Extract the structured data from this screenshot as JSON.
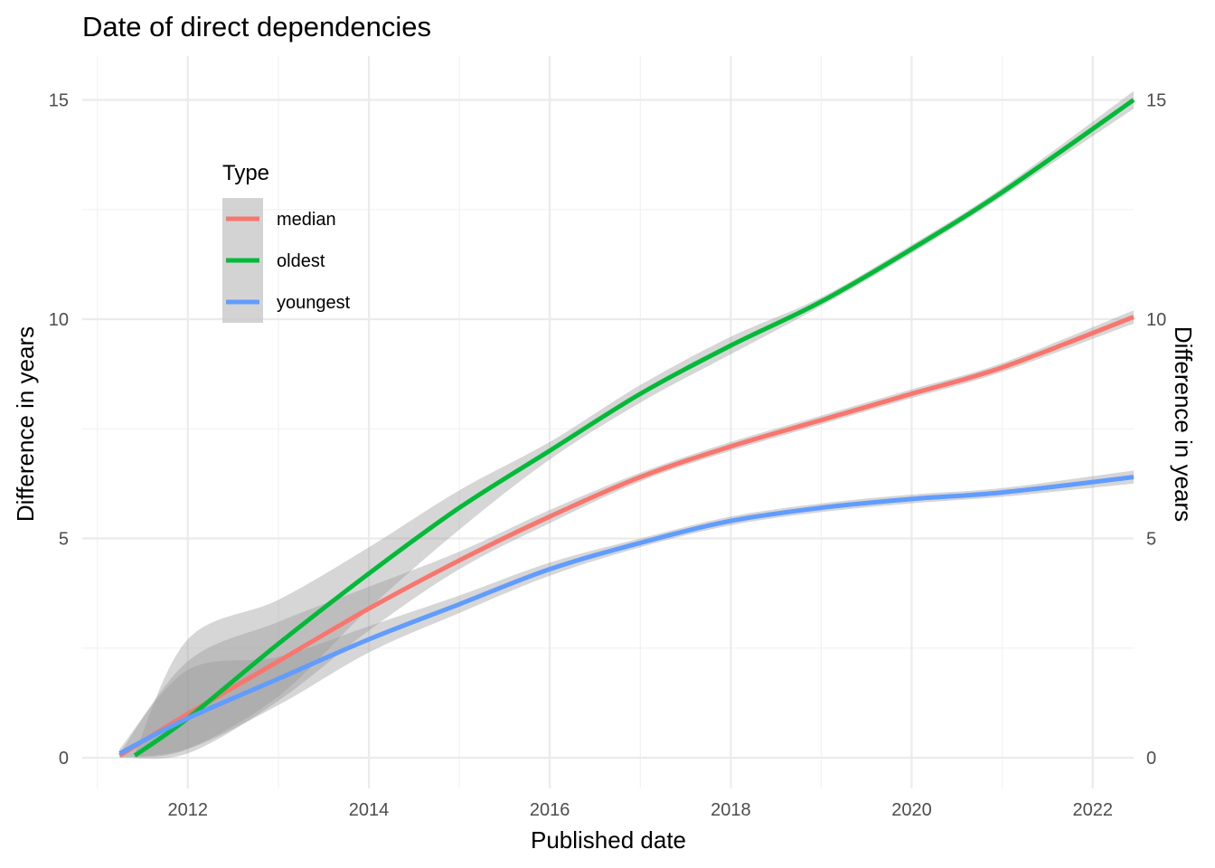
{
  "chart_data": {
    "type": "line",
    "title": "Date of direct dependencies",
    "xlabel": "Published date",
    "ylabel": "Difference in years",
    "ylabel_right": "Difference in years",
    "x_ticks": [
      "2012",
      "2014",
      "2016",
      "2018",
      "2020",
      "2022"
    ],
    "y_ticks": [
      "0",
      "5",
      "10",
      "15"
    ],
    "xlim": [
      "2010-11-01",
      "2022-06-15"
    ],
    "ylim": [
      -0.7,
      16.0
    ],
    "grid": true,
    "secondary_y_axis": true,
    "legend": {
      "title": "Type",
      "placement": "top-left inside plot"
    },
    "series": [
      {
        "name": "median",
        "color": "#F8766D",
        "x": [
          "2011-04-01",
          "2012-01-01",
          "2013-01-01",
          "2014-01-01",
          "2015-01-01",
          "2016-01-01",
          "2017-01-01",
          "2018-01-01",
          "2019-01-01",
          "2020-01-01",
          "2021-01-01",
          "2022-06-15"
        ],
        "values": [
          0.05,
          1.0,
          2.2,
          3.4,
          4.5,
          5.5,
          6.4,
          7.1,
          7.7,
          8.3,
          8.9,
          10.05
        ],
        "ci_low": [
          0.0,
          0.1,
          1.3,
          2.9,
          4.3,
          5.35,
          6.3,
          7.0,
          7.6,
          8.2,
          8.8,
          9.9
        ],
        "ci_high": [
          0.1,
          2.2,
          3.1,
          3.9,
          4.7,
          5.65,
          6.5,
          7.2,
          7.8,
          8.4,
          9.0,
          10.2
        ]
      },
      {
        "name": "oldest",
        "color": "#00BA38",
        "x": [
          "2011-06-01",
          "2012-01-01",
          "2013-01-01",
          "2014-01-01",
          "2015-01-01",
          "2016-01-01",
          "2017-01-01",
          "2018-01-01",
          "2019-01-01",
          "2020-01-01",
          "2021-01-01",
          "2022-06-15"
        ],
        "values": [
          0.05,
          0.9,
          2.6,
          4.2,
          5.7,
          7.0,
          8.3,
          9.4,
          10.4,
          11.6,
          12.9,
          15.0
        ],
        "ci_low": [
          0.0,
          0.2,
          1.4,
          3.4,
          5.2,
          6.8,
          8.1,
          9.2,
          10.3,
          11.5,
          12.8,
          14.8
        ],
        "ci_high": [
          0.1,
          2.7,
          3.6,
          4.8,
          6.1,
          7.2,
          8.5,
          9.6,
          10.5,
          11.7,
          13.0,
          15.2
        ]
      },
      {
        "name": "youngest",
        "color": "#619CFF",
        "x": [
          "2011-04-01",
          "2012-01-01",
          "2013-01-01",
          "2014-01-01",
          "2015-01-01",
          "2016-01-01",
          "2017-01-01",
          "2018-01-01",
          "2019-01-01",
          "2020-01-01",
          "2021-01-01",
          "2022-06-15"
        ],
        "values": [
          0.1,
          0.9,
          1.8,
          2.7,
          3.5,
          4.3,
          4.9,
          5.4,
          5.7,
          5.9,
          6.05,
          6.4
        ],
        "ci_low": [
          0.0,
          0.2,
          1.2,
          2.4,
          3.3,
          4.15,
          4.8,
          5.3,
          5.6,
          5.8,
          5.95,
          6.25
        ],
        "ci_high": [
          0.2,
          2.0,
          2.3,
          3.0,
          3.7,
          4.45,
          5.0,
          5.5,
          5.8,
          6.0,
          6.15,
          6.55
        ]
      }
    ]
  }
}
